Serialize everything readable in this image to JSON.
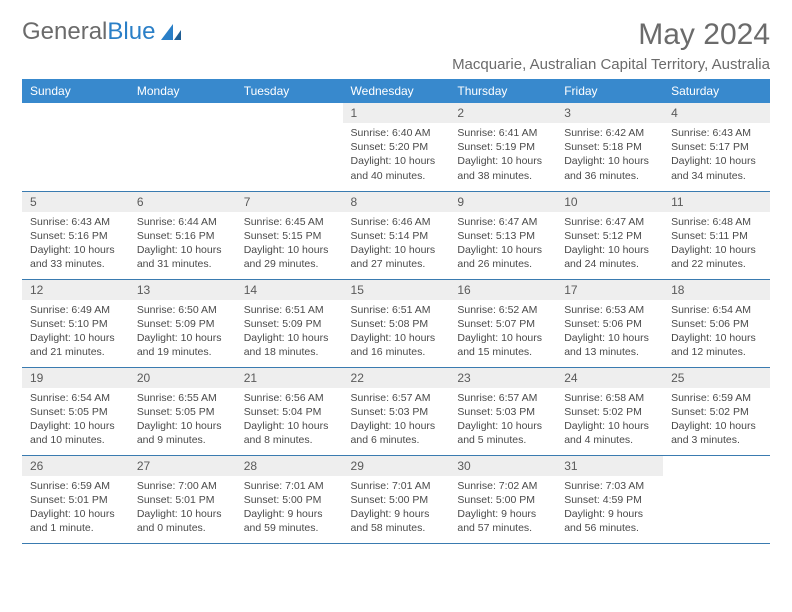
{
  "brand": {
    "part1": "General",
    "part2": "Blue"
  },
  "title": "May 2024",
  "location": "Macquarie, Australian Capital Territory, Australia",
  "colors": {
    "header_bg": "#3889cd",
    "header_text": "#ffffff",
    "daynum_bg": "#eeeeee",
    "text": "#4a4a4a",
    "row_border": "#3a7bb0",
    "brand_gray": "#6b6b6b",
    "brand_blue": "#2a7fc7"
  },
  "weekdays": [
    "Sunday",
    "Monday",
    "Tuesday",
    "Wednesday",
    "Thursday",
    "Friday",
    "Saturday"
  ],
  "weeks": [
    [
      {
        "n": "",
        "sr": "",
        "ss": "",
        "dl": ""
      },
      {
        "n": "",
        "sr": "",
        "ss": "",
        "dl": ""
      },
      {
        "n": "",
        "sr": "",
        "ss": "",
        "dl": ""
      },
      {
        "n": "1",
        "sr": "Sunrise: 6:40 AM",
        "ss": "Sunset: 5:20 PM",
        "dl": "Daylight: 10 hours and 40 minutes."
      },
      {
        "n": "2",
        "sr": "Sunrise: 6:41 AM",
        "ss": "Sunset: 5:19 PM",
        "dl": "Daylight: 10 hours and 38 minutes."
      },
      {
        "n": "3",
        "sr": "Sunrise: 6:42 AM",
        "ss": "Sunset: 5:18 PM",
        "dl": "Daylight: 10 hours and 36 minutes."
      },
      {
        "n": "4",
        "sr": "Sunrise: 6:43 AM",
        "ss": "Sunset: 5:17 PM",
        "dl": "Daylight: 10 hours and 34 minutes."
      }
    ],
    [
      {
        "n": "5",
        "sr": "Sunrise: 6:43 AM",
        "ss": "Sunset: 5:16 PM",
        "dl": "Daylight: 10 hours and 33 minutes."
      },
      {
        "n": "6",
        "sr": "Sunrise: 6:44 AM",
        "ss": "Sunset: 5:16 PM",
        "dl": "Daylight: 10 hours and 31 minutes."
      },
      {
        "n": "7",
        "sr": "Sunrise: 6:45 AM",
        "ss": "Sunset: 5:15 PM",
        "dl": "Daylight: 10 hours and 29 minutes."
      },
      {
        "n": "8",
        "sr": "Sunrise: 6:46 AM",
        "ss": "Sunset: 5:14 PM",
        "dl": "Daylight: 10 hours and 27 minutes."
      },
      {
        "n": "9",
        "sr": "Sunrise: 6:47 AM",
        "ss": "Sunset: 5:13 PM",
        "dl": "Daylight: 10 hours and 26 minutes."
      },
      {
        "n": "10",
        "sr": "Sunrise: 6:47 AM",
        "ss": "Sunset: 5:12 PM",
        "dl": "Daylight: 10 hours and 24 minutes."
      },
      {
        "n": "11",
        "sr": "Sunrise: 6:48 AM",
        "ss": "Sunset: 5:11 PM",
        "dl": "Daylight: 10 hours and 22 minutes."
      }
    ],
    [
      {
        "n": "12",
        "sr": "Sunrise: 6:49 AM",
        "ss": "Sunset: 5:10 PM",
        "dl": "Daylight: 10 hours and 21 minutes."
      },
      {
        "n": "13",
        "sr": "Sunrise: 6:50 AM",
        "ss": "Sunset: 5:09 PM",
        "dl": "Daylight: 10 hours and 19 minutes."
      },
      {
        "n": "14",
        "sr": "Sunrise: 6:51 AM",
        "ss": "Sunset: 5:09 PM",
        "dl": "Daylight: 10 hours and 18 minutes."
      },
      {
        "n": "15",
        "sr": "Sunrise: 6:51 AM",
        "ss": "Sunset: 5:08 PM",
        "dl": "Daylight: 10 hours and 16 minutes."
      },
      {
        "n": "16",
        "sr": "Sunrise: 6:52 AM",
        "ss": "Sunset: 5:07 PM",
        "dl": "Daylight: 10 hours and 15 minutes."
      },
      {
        "n": "17",
        "sr": "Sunrise: 6:53 AM",
        "ss": "Sunset: 5:06 PM",
        "dl": "Daylight: 10 hours and 13 minutes."
      },
      {
        "n": "18",
        "sr": "Sunrise: 6:54 AM",
        "ss": "Sunset: 5:06 PM",
        "dl": "Daylight: 10 hours and 12 minutes."
      }
    ],
    [
      {
        "n": "19",
        "sr": "Sunrise: 6:54 AM",
        "ss": "Sunset: 5:05 PM",
        "dl": "Daylight: 10 hours and 10 minutes."
      },
      {
        "n": "20",
        "sr": "Sunrise: 6:55 AM",
        "ss": "Sunset: 5:05 PM",
        "dl": "Daylight: 10 hours and 9 minutes."
      },
      {
        "n": "21",
        "sr": "Sunrise: 6:56 AM",
        "ss": "Sunset: 5:04 PM",
        "dl": "Daylight: 10 hours and 8 minutes."
      },
      {
        "n": "22",
        "sr": "Sunrise: 6:57 AM",
        "ss": "Sunset: 5:03 PM",
        "dl": "Daylight: 10 hours and 6 minutes."
      },
      {
        "n": "23",
        "sr": "Sunrise: 6:57 AM",
        "ss": "Sunset: 5:03 PM",
        "dl": "Daylight: 10 hours and 5 minutes."
      },
      {
        "n": "24",
        "sr": "Sunrise: 6:58 AM",
        "ss": "Sunset: 5:02 PM",
        "dl": "Daylight: 10 hours and 4 minutes."
      },
      {
        "n": "25",
        "sr": "Sunrise: 6:59 AM",
        "ss": "Sunset: 5:02 PM",
        "dl": "Daylight: 10 hours and 3 minutes."
      }
    ],
    [
      {
        "n": "26",
        "sr": "Sunrise: 6:59 AM",
        "ss": "Sunset: 5:01 PM",
        "dl": "Daylight: 10 hours and 1 minute."
      },
      {
        "n": "27",
        "sr": "Sunrise: 7:00 AM",
        "ss": "Sunset: 5:01 PM",
        "dl": "Daylight: 10 hours and 0 minutes."
      },
      {
        "n": "28",
        "sr": "Sunrise: 7:01 AM",
        "ss": "Sunset: 5:00 PM",
        "dl": "Daylight: 9 hours and 59 minutes."
      },
      {
        "n": "29",
        "sr": "Sunrise: 7:01 AM",
        "ss": "Sunset: 5:00 PM",
        "dl": "Daylight: 9 hours and 58 minutes."
      },
      {
        "n": "30",
        "sr": "Sunrise: 7:02 AM",
        "ss": "Sunset: 5:00 PM",
        "dl": "Daylight: 9 hours and 57 minutes."
      },
      {
        "n": "31",
        "sr": "Sunrise: 7:03 AM",
        "ss": "Sunset: 4:59 PM",
        "dl": "Daylight: 9 hours and 56 minutes."
      },
      {
        "n": "",
        "sr": "",
        "ss": "",
        "dl": ""
      }
    ]
  ]
}
